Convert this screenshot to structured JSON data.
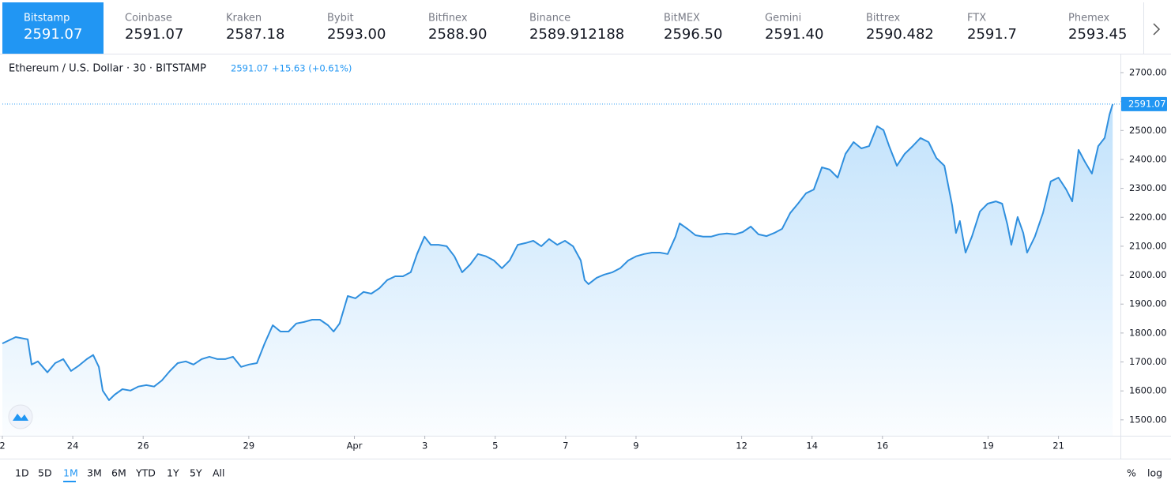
{
  "tabs": [
    {
      "name": "Bitstamp",
      "price": "2591.07"
    },
    {
      "name": "Coinbase",
      "price": "2591.07"
    },
    {
      "name": "Kraken",
      "price": "2587.18"
    },
    {
      "name": "Bybit",
      "price": "2593.00"
    },
    {
      "name": "Bitfinex",
      "price": "2588.90"
    },
    {
      "name": "Binance",
      "price": "2589.912188"
    },
    {
      "name": "BitMEX",
      "price": "2596.50"
    },
    {
      "name": "Gemini",
      "price": "2591.40"
    },
    {
      "name": "Bittrex",
      "price": "2590.482"
    },
    {
      "name": "FTX",
      "price": "2591.7"
    },
    {
      "name": "Phemex",
      "price": "2593.45"
    }
  ],
  "header": {
    "title": "Ethereum / U.S. Dollar · 30 · BITSTAMP",
    "price": "2591.07",
    "change": "+15.63 (+0.61%)"
  },
  "chart_data": {
    "type": "area",
    "color": "#2f8fde",
    "x": [
      0,
      0.38,
      0.72,
      0.83,
      1.01,
      1.28,
      1.5,
      1.73,
      1.95,
      2.18,
      2.4,
      2.58,
      2.74,
      2.85,
      3.03,
      3.19,
      3.41,
      3.64,
      3.86,
      4.09,
      4.31,
      4.53,
      4.76,
      4.98,
      5.21,
      5.43,
      5.66,
      5.88,
      6.11,
      6.33,
      6.55,
      6.78,
      7.0,
      7.23,
      7.45,
      7.68,
      7.9,
      8.13,
      8.35,
      8.57,
      8.8,
      9.02,
      9.25,
      9.41,
      9.58,
      9.81,
      10.03,
      10.26,
      10.48,
      10.71,
      10.93,
      11.16,
      11.38,
      11.6,
      11.78,
      11.99,
      12.17,
      12.39,
      12.62,
      12.84,
      13.06,
      13.29,
      13.51,
      13.74,
      13.96,
      14.19,
      14.41,
      14.64,
      14.86,
      15.08,
      15.31,
      15.53,
      15.76,
      15.98,
      16.21,
      16.43,
      16.54,
      16.65,
      16.88,
      17.1,
      17.33,
      17.55,
      17.78,
      18.0,
      18.23,
      18.45,
      18.68,
      18.9,
      19.12,
      19.24,
      19.46,
      19.69,
      19.91,
      20.13,
      20.36,
      20.58,
      20.81,
      21.03,
      21.26,
      21.48,
      21.71,
      21.93,
      22.15,
      22.38,
      22.6,
      22.83,
      23.05,
      23.28,
      23.5,
      23.73,
      23.95,
      24.18,
      24.4,
      24.62,
      24.85,
      25.03,
      25.19,
      25.41,
      25.63,
      25.86,
      26.08,
      26.31,
      26.53,
      26.76,
      26.98,
      27.09,
      27.2,
      27.36,
      27.54,
      27.77,
      27.99,
      28.22,
      28.4,
      28.55,
      28.66,
      28.84,
      29.0,
      29.11,
      29.33,
      29.56,
      29.78,
      30.0,
      30.22,
      30.39,
      30.57,
      30.75,
      30.95,
      31.13,
      31.31,
      31.45,
      31.54
    ],
    "values": [
      1764,
      1786,
      1778,
      1691,
      1702,
      1664,
      1696,
      1710,
      1669,
      1688,
      1710,
      1724,
      1683,
      1601,
      1568,
      1587,
      1606,
      1601,
      1615,
      1620,
      1615,
      1636,
      1669,
      1696,
      1702,
      1691,
      1710,
      1718,
      1710,
      1710,
      1718,
      1683,
      1691,
      1696,
      1764,
      1827,
      1805,
      1805,
      1833,
      1838,
      1846,
      1846,
      1827,
      1805,
      1833,
      1928,
      1920,
      1942,
      1936,
      1955,
      1983,
      1996,
      1996,
      2010,
      2073,
      2133,
      2105,
      2105,
      2100,
      2065,
      2010,
      2037,
      2073,
      2065,
      2051,
      2024,
      2051,
      2105,
      2111,
      2119,
      2100,
      2125,
      2105,
      2119,
      2100,
      2051,
      1983,
      1969,
      1991,
      2002,
      2010,
      2024,
      2051,
      2065,
      2073,
      2078,
      2078,
      2073,
      2133,
      2179,
      2160,
      2138,
      2133,
      2133,
      2141,
      2144,
      2141,
      2149,
      2168,
      2141,
      2135,
      2146,
      2160,
      2215,
      2247,
      2283,
      2296,
      2373,
      2365,
      2337,
      2419,
      2460,
      2438,
      2446,
      2515,
      2501,
      2446,
      2378,
      2419,
      2446,
      2474,
      2460,
      2405,
      2378,
      2242,
      2146,
      2187,
      2078,
      2133,
      2220,
      2247,
      2255,
      2247,
      2174,
      2105,
      2201,
      2146,
      2078,
      2133,
      2215,
      2324,
      2337,
      2296,
      2255,
      2433,
      2392,
      2351,
      2446,
      2474,
      2555,
      2591.07
    ],
    "xlim": [
      0,
      31.76
    ],
    "xticks": [
      {
        "value": 0,
        "label": "2"
      },
      {
        "value": 2,
        "label": "24"
      },
      {
        "value": 4,
        "label": "26"
      },
      {
        "value": 7,
        "label": "29"
      },
      {
        "value": 10,
        "label": "Apr"
      },
      {
        "value": 12,
        "label": "3"
      },
      {
        "value": 14,
        "label": "5"
      },
      {
        "value": 16,
        "label": "7"
      },
      {
        "value": 18,
        "label": "9"
      },
      {
        "value": 21,
        "label": "12"
      },
      {
        "value": 23,
        "label": "14"
      },
      {
        "value": 25,
        "label": "16"
      },
      {
        "value": 28,
        "label": "19"
      },
      {
        "value": 30,
        "label": "21"
      }
    ],
    "ylim": [
      1445,
      2760
    ],
    "yticks": [
      {
        "value": 1500,
        "label": "1500.00"
      },
      {
        "value": 1600,
        "label": "1600.00"
      },
      {
        "value": 1700,
        "label": "1700.00"
      },
      {
        "value": 1800,
        "label": "1800.00"
      },
      {
        "value": 1900,
        "label": "1900.00"
      },
      {
        "value": 2000,
        "label": "2000.00"
      },
      {
        "value": 2100,
        "label": "2100.00"
      },
      {
        "value": 2200,
        "label": "2200.00"
      },
      {
        "value": 2300,
        "label": "2300.00"
      },
      {
        "value": 2400,
        "label": "2400.00"
      },
      {
        "value": 2500,
        "label": "2500.00"
      },
      {
        "value": 2600,
        "label": "2600.00"
      },
      {
        "value": 2700,
        "label": "2700.00"
      }
    ],
    "last_value": 2591.07
  },
  "ranges": [
    "1D",
    "5D",
    "1M",
    "3M",
    "6M",
    "YTD",
    "1Y",
    "5Y",
    "All"
  ],
  "scale_options": [
    "%",
    "log"
  ]
}
